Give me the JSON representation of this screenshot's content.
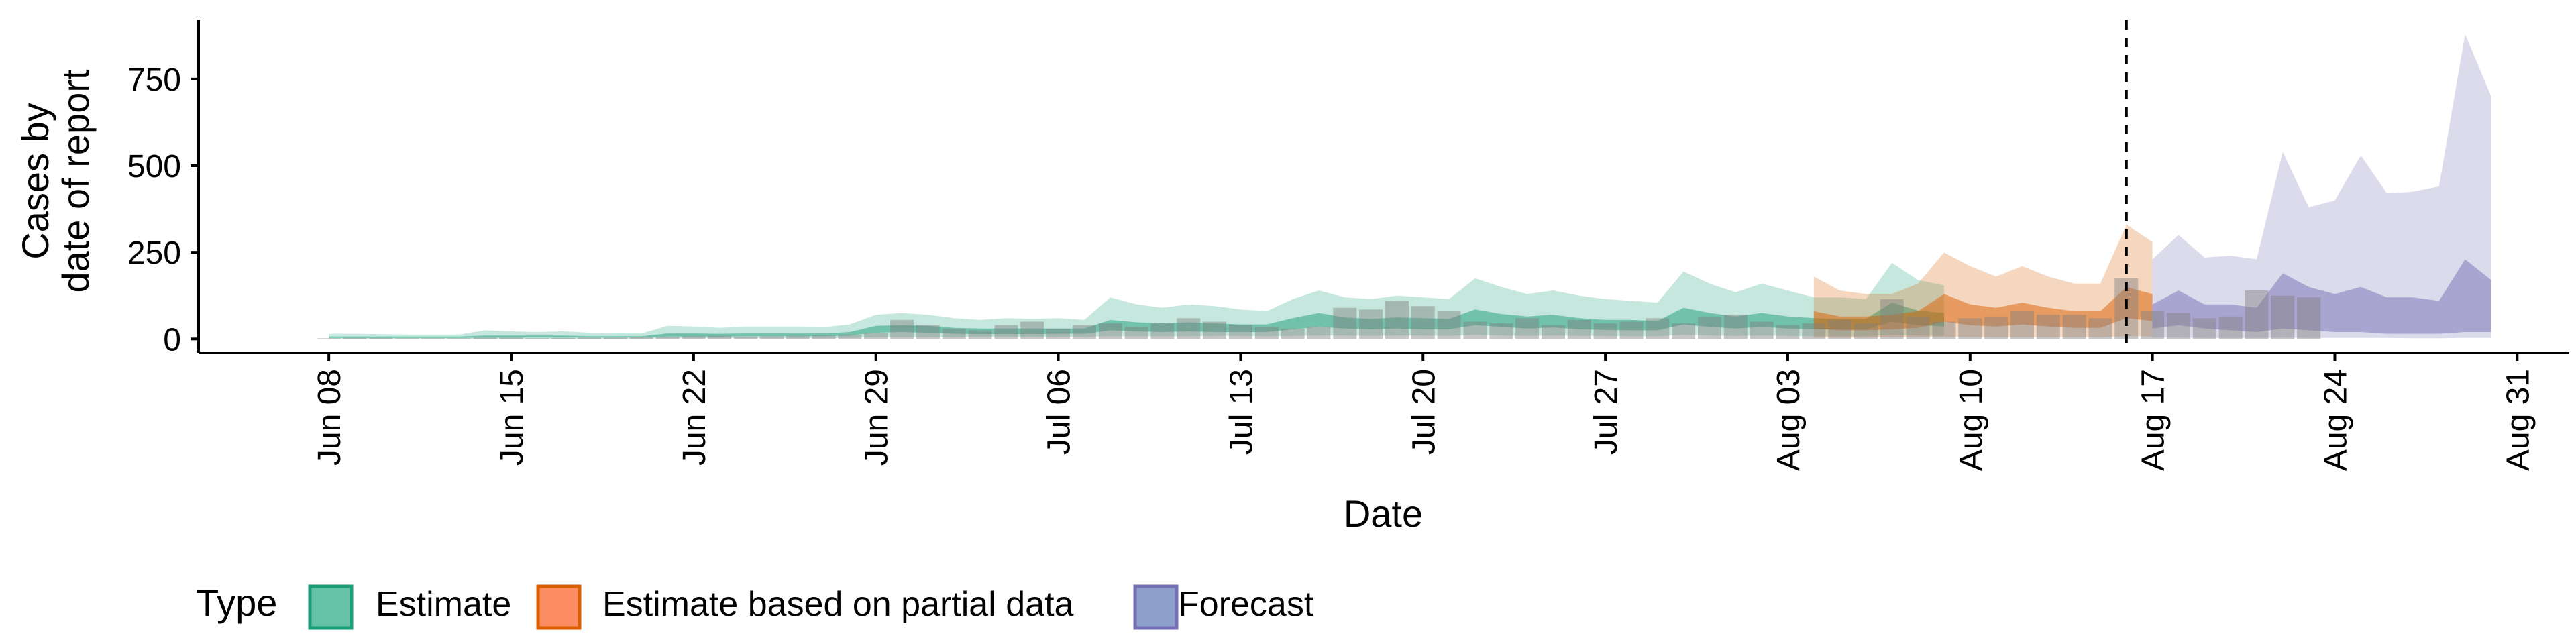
{
  "chart_data": {
    "type": "area",
    "xlabel": "Date",
    "ylabel_lines": [
      "Cases by",
      "date of report"
    ],
    "x_ticks": [
      {
        "date": "2020-06-08",
        "label": "Jun 08"
      },
      {
        "date": "2020-06-15",
        "label": "Jun 15"
      },
      {
        "date": "2020-06-22",
        "label": "Jun 22"
      },
      {
        "date": "2020-06-29",
        "label": "Jun 29"
      },
      {
        "date": "2020-07-06",
        "label": "Jul 06"
      },
      {
        "date": "2020-07-13",
        "label": "Jul 13"
      },
      {
        "date": "2020-07-20",
        "label": "Jul 20"
      },
      {
        "date": "2020-07-27",
        "label": "Jul 27"
      },
      {
        "date": "2020-08-03",
        "label": "Aug 03"
      },
      {
        "date": "2020-08-10",
        "label": "Aug 10"
      },
      {
        "date": "2020-08-17",
        "label": "Aug 17"
      },
      {
        "date": "2020-08-24",
        "label": "Aug 24"
      },
      {
        "date": "2020-08-31",
        "label": "Aug 31"
      }
    ],
    "xlim": [
      "2020-06-03",
      "2020-09-02"
    ],
    "y_ticks": [
      0,
      250,
      500,
      750
    ],
    "ylim": [
      -40,
      920
    ],
    "forecast_start_line": "2020-08-16",
    "legend": {
      "title": "Type",
      "position": "bottom",
      "items": [
        {
          "label": "Estimate",
          "fill": "#66c2a5",
          "stroke": "#1b9e77"
        },
        {
          "label": "Estimate based on partial data",
          "fill": "#fc8d62",
          "stroke": "#d95f02"
        },
        {
          "label": "Forecast",
          "fill": "#8da0cb",
          "stroke": "#7570b3"
        }
      ]
    },
    "colors": {
      "estimate": "#1b9e77",
      "partial": "#d95f02",
      "forecast": "#7570b3",
      "bars": "#7f7f7f"
    },
    "reported_cases": {
      "start_date": "2020-06-08",
      "values": [
        2,
        3,
        3,
        2,
        2,
        2,
        4,
        4,
        2,
        3,
        4,
        4,
        5,
        6,
        8,
        9,
        7,
        8,
        9,
        10,
        12,
        18,
        55,
        40,
        30,
        25,
        40,
        50,
        30,
        40,
        45,
        35,
        45,
        60,
        50,
        40,
        35,
        30,
        35,
        90,
        85,
        110,
        95,
        80,
        50,
        45,
        60,
        40,
        55,
        45,
        50,
        60,
        45,
        65,
        70,
        50,
        40,
        45,
        55,
        45,
        115,
        65,
        50,
        60,
        65,
        80,
        70,
        70,
        60,
        175,
        80,
        75,
        60,
        65,
        140,
        125,
        120
      ]
    },
    "series": [
      {
        "name": "Estimate",
        "start_date": "2020-06-08",
        "outer_upper": [
          15,
          15,
          14,
          13,
          13,
          13,
          25,
          22,
          20,
          22,
          18,
          18,
          16,
          38,
          36,
          32,
          36,
          36,
          36,
          34,
          42,
          70,
          75,
          70,
          60,
          55,
          60,
          58,
          60,
          55,
          120,
          100,
          90,
          100,
          95,
          85,
          80,
          115,
          140,
          120,
          115,
          125,
          120,
          115,
          175,
          150,
          130,
          140,
          125,
          115,
          110,
          105,
          195,
          160,
          135,
          160,
          140,
          120,
          120,
          115,
          220,
          170,
          155
        ],
        "outer_lower": [
          0,
          0,
          0,
          0,
          0,
          0,
          0,
          0,
          0,
          0,
          0,
          0,
          1,
          2,
          2,
          2,
          2,
          2,
          2,
          2,
          3,
          5,
          5,
          5,
          5,
          5,
          5,
          5,
          6,
          6,
          8,
          8,
          8,
          8,
          9,
          9,
          8,
          9,
          10,
          10,
          9,
          10,
          10,
          9,
          12,
          10,
          9,
          10,
          9,
          9,
          8,
          8,
          12,
          10,
          9,
          10,
          9,
          8,
          8,
          8,
          12,
          10,
          9
        ],
        "inner_upper": [
          7,
          7,
          7,
          7,
          7,
          7,
          10,
          10,
          10,
          10,
          8,
          8,
          8,
          16,
          16,
          15,
          16,
          16,
          16,
          16,
          20,
          38,
          40,
          38,
          32,
          30,
          30,
          30,
          30,
          30,
          55,
          48,
          45,
          48,
          45,
          42,
          42,
          60,
          75,
          62,
          58,
          62,
          60,
          58,
          85,
          72,
          65,
          70,
          60,
          55,
          55,
          52,
          90,
          75,
          65,
          75,
          65,
          60,
          58,
          58,
          105,
          82,
          75
        ],
        "inner_lower": [
          3,
          3,
          3,
          3,
          3,
          3,
          4,
          4,
          4,
          4,
          4,
          4,
          4,
          7,
          7,
          7,
          8,
          8,
          8,
          8,
          10,
          18,
          20,
          18,
          15,
          14,
          14,
          14,
          15,
          15,
          25,
          22,
          20,
          22,
          20,
          20,
          20,
          28,
          35,
          30,
          28,
          30,
          28,
          28,
          40,
          35,
          30,
          33,
          28,
          26,
          25,
          25,
          42,
          35,
          30,
          35,
          30,
          28,
          28,
          27,
          50,
          40,
          36
        ]
      },
      {
        "name": "Estimate based on partial data",
        "start_date": "2020-08-04",
        "outer_upper": [
          180,
          140,
          130,
          130,
          160,
          250,
          210,
          180,
          210,
          180,
          160,
          160,
          330,
          280
        ],
        "outer_lower": [
          4,
          4,
          4,
          5,
          5,
          6,
          6,
          5,
          5,
          5,
          5,
          5,
          8,
          7
        ],
        "inner_upper": [
          80,
          65,
          65,
          70,
          80,
          130,
          100,
          90,
          105,
          90,
          80,
          80,
          150,
          130
        ],
        "inner_lower": [
          30,
          25,
          25,
          28,
          32,
          50,
          40,
          36,
          42,
          36,
          32,
          32,
          60,
          52
        ]
      },
      {
        "name": "Forecast",
        "start_date": "2020-08-17",
        "outer_upper": [
          230,
          300,
          235,
          240,
          230,
          540,
          380,
          400,
          530,
          420,
          425,
          440,
          880,
          700
        ],
        "outer_lower": [
          4,
          4,
          3,
          3,
          3,
          4,
          3,
          3,
          3,
          3,
          2,
          2,
          3,
          3
        ],
        "inner_upper": [
          100,
          140,
          100,
          100,
          90,
          190,
          150,
          130,
          150,
          120,
          120,
          110,
          230,
          170
        ],
        "inner_lower": [
          30,
          40,
          30,
          25,
          20,
          30,
          25,
          20,
          20,
          15,
          15,
          15,
          20,
          20
        ]
      }
    ]
  }
}
